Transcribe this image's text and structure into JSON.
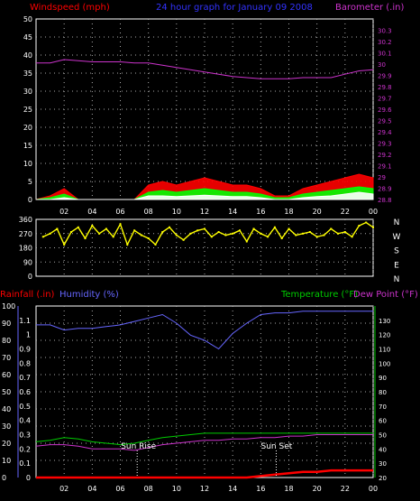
{
  "header": {
    "left_label": "Windspeed (mph)",
    "title": "24 hour graph for  January 09 2008",
    "right_label": "Barometer (.in)"
  },
  "colors": {
    "wind_label": "#ff0000",
    "title": "#3333ff",
    "baro_label": "#cc33cc",
    "wind_max": "#ff0000",
    "wind_avg": "#00ff00",
    "wind_min": "#ffffff",
    "barometer": "#cc33cc",
    "direction": "#ffff00",
    "rain": "#ff0000",
    "humidity": "#6666ff",
    "temperature": "#00cc00",
    "dewpoint": "#cc33cc",
    "grid": "#aaaaaa",
    "axis_text": "#ffffff"
  },
  "direction_labels": [
    "N",
    "W",
    "S",
    "E",
    "N"
  ],
  "bottom_header": {
    "rain_label": "Rainfall (.in)",
    "humidity_label": "Humidity (%)",
    "temp_label": "Temperature (°F)",
    "dew_label": "Dew Point (°F)"
  },
  "annotations": {
    "sunrise": "Sun Rise",
    "sunset": "Sun Set"
  },
  "chart_data": [
    {
      "type": "line",
      "name": "wind-barometer",
      "x_ticks": [
        "02",
        "04",
        "06",
        "08",
        "10",
        "12",
        "14",
        "16",
        "18",
        "20",
        "22",
        "00"
      ],
      "wind_axis": {
        "min": 0,
        "max": 50,
        "ticks": [
          0,
          5,
          10,
          15,
          20,
          25,
          30,
          35,
          40,
          45,
          50
        ]
      },
      "baro_axis": {
        "min": 28.8,
        "max": 30.4,
        "ticks": [
          "28.8",
          "28.9",
          "29",
          "29.1",
          "29.2",
          "29.3",
          "29.4",
          "29.5",
          "29.6",
          "29.7",
          "29.8",
          "29.9",
          "30",
          "30.1",
          "30.2",
          "30.3"
        ]
      },
      "series": [
        {
          "key": "barometer",
          "x": [
            0,
            1,
            2,
            3,
            4,
            5,
            6,
            7,
            8,
            9,
            10,
            11,
            12,
            13,
            14,
            15,
            16,
            17,
            18,
            19,
            20,
            21,
            22,
            23,
            24
          ],
          "values": [
            30.01,
            30.01,
            30.04,
            30.03,
            30.02,
            30.02,
            30.02,
            30.01,
            30.01,
            29.99,
            29.97,
            29.95,
            29.93,
            29.91,
            29.89,
            29.88,
            29.87,
            29.87,
            29.87,
            29.88,
            29.88,
            29.88,
            29.91,
            29.94,
            29.95
          ]
        },
        {
          "key": "wind_max",
          "x": [
            0,
            1,
            2,
            3,
            4,
            5,
            6,
            7,
            8,
            9,
            10,
            11,
            12,
            13,
            14,
            15,
            16,
            17,
            18,
            19,
            20,
            21,
            22,
            23,
            24
          ],
          "values": [
            0,
            1,
            3,
            0,
            0,
            0,
            0,
            0,
            4,
            5,
            4,
            5,
            6,
            5,
            4,
            4,
            3,
            1,
            1,
            3,
            4,
            5,
            6,
            7,
            6
          ]
        },
        {
          "key": "wind_avg",
          "x": [
            0,
            1,
            2,
            3,
            4,
            5,
            6,
            7,
            8,
            9,
            10,
            11,
            12,
            13,
            14,
            15,
            16,
            17,
            18,
            19,
            20,
            21,
            22,
            23,
            24
          ],
          "values": [
            0,
            0.5,
            1.5,
            0,
            0,
            0,
            0,
            0,
            2,
            2.5,
            2,
            2.5,
            3,
            2.5,
            2,
            2,
            1.5,
            0.5,
            0.5,
            1.5,
            2,
            2.5,
            3,
            3.5,
            3
          ]
        },
        {
          "key": "wind_min",
          "x": [
            0,
            1,
            2,
            3,
            4,
            5,
            6,
            7,
            8,
            9,
            10,
            11,
            12,
            13,
            14,
            15,
            16,
            17,
            18,
            19,
            20,
            21,
            22,
            23,
            24
          ],
          "values": [
            0,
            0,
            0.5,
            0,
            0,
            0,
            0,
            0,
            1,
            1,
            0.8,
            1,
            1.2,
            1,
            0.8,
            0.8,
            0.5,
            0,
            0,
            0.5,
            0.8,
            1,
            1.5,
            2,
            1.5
          ]
        }
      ]
    },
    {
      "type": "scatter",
      "name": "wind-direction",
      "y_axis": {
        "min": 0,
        "max": 360,
        "ticks": [
          0,
          90,
          180,
          270,
          360
        ]
      },
      "series": [
        {
          "key": "direction",
          "x": [
            0.5,
            1,
            1.5,
            2,
            2.5,
            3,
            3.5,
            4,
            4.5,
            5,
            5.5,
            6,
            6.5,
            7,
            7.5,
            8,
            8.5,
            9,
            9.5,
            10,
            10.5,
            11,
            11.5,
            12,
            12.5,
            13,
            13.5,
            14,
            14.5,
            15,
            15.5,
            16,
            16.5,
            17,
            17.5,
            18,
            18.5,
            19,
            19.5,
            20,
            20.5,
            21,
            21.5,
            22,
            22.5,
            23,
            23.5,
            24
          ],
          "values": [
            250,
            270,
            300,
            200,
            280,
            310,
            240,
            320,
            270,
            300,
            250,
            330,
            200,
            290,
            260,
            240,
            200,
            280,
            310,
            260,
            230,
            270,
            290,
            300,
            250,
            280,
            260,
            270,
            290,
            220,
            300,
            270,
            250,
            310,
            240,
            300,
            260,
            270,
            280,
            250,
            260,
            300,
            270,
            280,
            250,
            320,
            340,
            310
          ]
        }
      ]
    },
    {
      "type": "line",
      "name": "rain-humidity-temperature",
      "x_ticks": [
        "02",
        "04",
        "06",
        "08",
        "10",
        "12",
        "14",
        "16",
        "18",
        "20",
        "22",
        "00"
      ],
      "humidity_axis": {
        "min": 0,
        "max": 100,
        "ticks": [
          0,
          10,
          20,
          30,
          40,
          50,
          60,
          70,
          80,
          90,
          100
        ]
      },
      "rain_axis": {
        "min": 0,
        "max": 1.2,
        "ticks": [
          "0",
          "0.1",
          "0.2",
          "0.3",
          "0.4",
          "0.5",
          "0.6",
          "0.7",
          "0.8",
          "0.9",
          "1",
          "1.1"
        ]
      },
      "temp_axis": {
        "min": 20,
        "max": 140,
        "ticks": [
          20,
          30,
          40,
          50,
          60,
          70,
          80,
          90,
          100,
          110,
          120,
          130
        ]
      },
      "series": [
        {
          "key": "humidity",
          "x": [
            0,
            1,
            2,
            3,
            4,
            5,
            6,
            7,
            8,
            9,
            10,
            11,
            12,
            13,
            14,
            15,
            16,
            17,
            18,
            19,
            20,
            21,
            22,
            23,
            24
          ],
          "values": [
            89,
            89,
            86,
            87,
            87,
            88,
            89,
            91,
            93,
            95,
            90,
            83,
            80,
            75,
            84,
            90,
            95,
            96,
            96,
            97,
            97,
            97,
            97,
            97,
            97
          ]
        },
        {
          "key": "rain",
          "x": [
            0,
            1,
            2,
            3,
            4,
            5,
            6,
            7,
            8,
            9,
            10,
            11,
            12,
            13,
            14,
            15,
            16,
            17,
            18,
            19,
            20,
            21,
            22,
            23,
            24
          ],
          "values": [
            0,
            0,
            0,
            0,
            0,
            0,
            0,
            0,
            0,
            0,
            0,
            0,
            0,
            0,
            0,
            0,
            0.01,
            0.02,
            0.03,
            0.04,
            0.04,
            0.05,
            0.05,
            0.05,
            0.05
          ]
        },
        {
          "key": "temperature",
          "x": [
            0,
            1,
            2,
            3,
            4,
            5,
            6,
            7,
            8,
            9,
            10,
            11,
            12,
            13,
            14,
            15,
            16,
            17,
            18,
            19,
            20,
            21,
            22,
            23,
            24
          ],
          "values": [
            45,
            46,
            48,
            47,
            45,
            44,
            43,
            44,
            46,
            48,
            49,
            50,
            51,
            51,
            51,
            51,
            51,
            51,
            51,
            51,
            51,
            51,
            51,
            51,
            51
          ]
        },
        {
          "key": "dewpoint",
          "x": [
            0,
            1,
            2,
            3,
            4,
            5,
            6,
            7,
            8,
            9,
            10,
            11,
            12,
            13,
            14,
            15,
            16,
            17,
            18,
            19,
            20,
            21,
            22,
            23,
            24
          ],
          "values": [
            42,
            43,
            43,
            42,
            40,
            40,
            40,
            39,
            41,
            43,
            44,
            45,
            46,
            46,
            47,
            47,
            48,
            48,
            49,
            49,
            50,
            50,
            50,
            50,
            50
          ]
        }
      ],
      "sunrise_hour": 7.2,
      "sunset_hour": 17.1
    }
  ]
}
